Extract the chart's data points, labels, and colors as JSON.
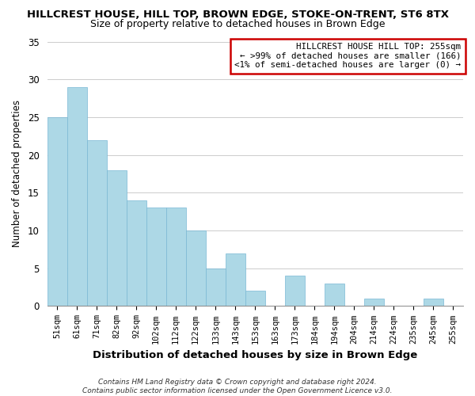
{
  "title": "HILLCREST HOUSE, HILL TOP, BROWN EDGE, STOKE-ON-TRENT, ST6 8TX",
  "subtitle": "Size of property relative to detached houses in Brown Edge",
  "xlabel": "Distribution of detached houses by size in Brown Edge",
  "ylabel": "Number of detached properties",
  "bar_color": "#add8e6",
  "bar_edge_color": "#7ab8d4",
  "bin_labels": [
    "51sqm",
    "61sqm",
    "71sqm",
    "82sqm",
    "92sqm",
    "102sqm",
    "112sqm",
    "122sqm",
    "133sqm",
    "143sqm",
    "153sqm",
    "163sqm",
    "173sqm",
    "184sqm",
    "194sqm",
    "204sqm",
    "214sqm",
    "224sqm",
    "235sqm",
    "245sqm",
    "255sqm"
  ],
  "values": [
    25,
    29,
    22,
    18,
    14,
    13,
    13,
    10,
    5,
    7,
    2,
    0,
    4,
    0,
    3,
    0,
    1,
    0,
    0,
    1,
    0
  ],
  "ylim": [
    0,
    35
  ],
  "yticks": [
    0,
    5,
    10,
    15,
    20,
    25,
    30,
    35
  ],
  "annotation_box_text": "HILLCREST HOUSE HILL TOP: 255sqm\n← >99% of detached houses are smaller (166)\n<1% of semi-detached houses are larger (0) →",
  "annotation_box_color": "#ffffff",
  "annotation_box_edge_color": "#cc0000",
  "highlight_bar_index": 20,
  "footer_line1": "Contains HM Land Registry data © Crown copyright and database right 2024.",
  "footer_line2": "Contains public sector information licensed under the Open Government Licence v3.0.",
  "grid_color": "#cccccc",
  "background_color": "#ffffff"
}
